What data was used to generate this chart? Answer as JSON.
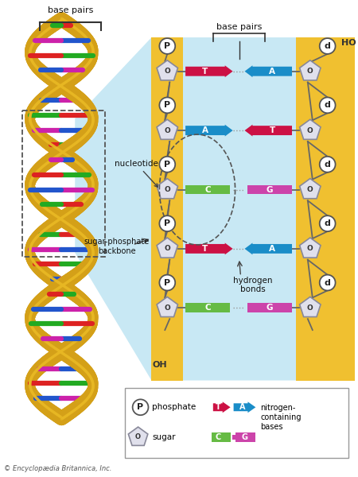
{
  "fig_width": 4.5,
  "fig_height": 6.0,
  "dpi": 100,
  "bg_color": "#ffffff",
  "yellow_color": "#F0C030",
  "light_blue_color": "#C8E8F4",
  "copyright": "© Encyclopædia Britannica, Inc.",
  "labels": {
    "base_pairs_top_left": "base pairs",
    "base_pairs_top_right": "base pairs",
    "nucleotide": "nucleotide",
    "sugar_phosphate": "sugar-phosphate\nbackbone",
    "hydrogen_bonds": "hydrogen\nbonds",
    "HO": "HO",
    "OH": "OH"
  },
  "legend": {
    "phosphate_label": "phosphate",
    "sugar_label": "sugar",
    "nitrogen_label": "nitrogen-\ncontaining\nbases",
    "T_color": "#CC1144",
    "A_color": "#1A8DC8",
    "C_color": "#66BB44",
    "G_color": "#CC44AA"
  },
  "base_pair_rows": [
    {
      "left": "T",
      "right": "A",
      "left_color": "#CC1144",
      "right_color": "#1A8DC8",
      "left_arrow": true,
      "right_arrow": false
    },
    {
      "left": "A",
      "right": "T",
      "left_color": "#1A8DC8",
      "right_color": "#CC1144",
      "left_arrow": false,
      "right_arrow": true
    },
    {
      "left": "C",
      "right": "G",
      "left_color": "#66BB44",
      "right_color": "#CC44AA",
      "left_arrow": false,
      "right_arrow": false
    },
    {
      "left": "T",
      "right": "A",
      "left_color": "#CC1144",
      "right_color": "#1A8DC8",
      "left_arrow": true,
      "right_arrow": false
    },
    {
      "left": "C",
      "right": "G",
      "left_color": "#66BB44",
      "right_color": "#CC44AA",
      "left_arrow": false,
      "right_arrow": false
    }
  ],
  "helix_colors": [
    "#DD2222",
    "#2255CC",
    "#22AA22",
    "#CC22AA"
  ]
}
